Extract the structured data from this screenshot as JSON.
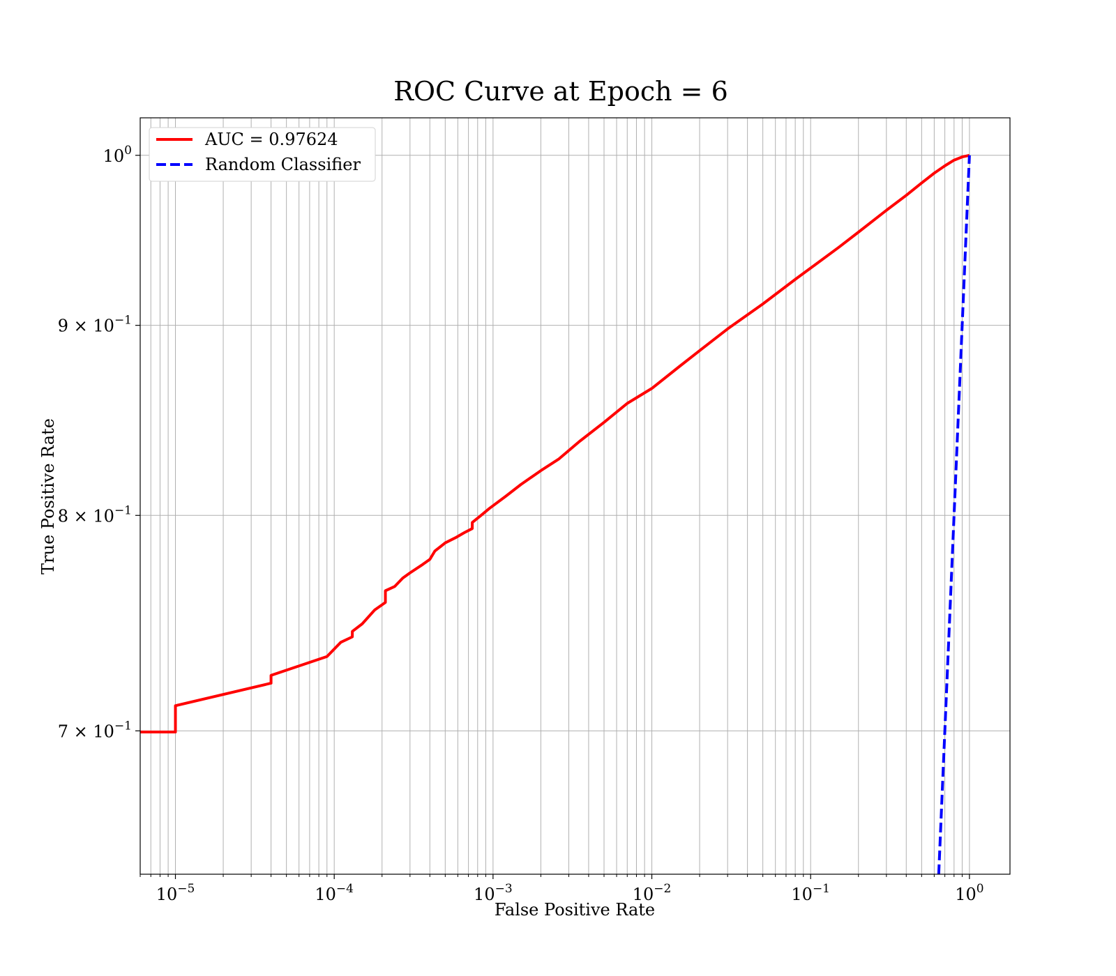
{
  "chart_data": {
    "type": "line",
    "title": "ROC Curve at Epoch = 6",
    "xlabel": "False Positive Rate",
    "ylabel": "True Positive Rate",
    "xscale": "log",
    "yscale": "log",
    "xlim": [
      6e-06,
      1.8
    ],
    "ylim": [
      0.6405,
      1.0235
    ],
    "grid": "both (major and minor)",
    "legend_position": "upper left",
    "x_ticks": [
      {
        "base": "10",
        "exp": "−5"
      },
      {
        "base": "10",
        "exp": "−4"
      },
      {
        "base": "10",
        "exp": "−3"
      },
      {
        "base": "10",
        "exp": "−2"
      },
      {
        "base": "10",
        "exp": "−1"
      },
      {
        "base": "10",
        "exp": "0"
      }
    ],
    "y_ticks": [
      {
        "mant": "7 × ",
        "base": "10",
        "exp": "−1"
      },
      {
        "mant": "8 × ",
        "base": "10",
        "exp": "−1"
      },
      {
        "mant": "9 × ",
        "base": "10",
        "exp": "−1"
      },
      {
        "mant": "",
        "base": "10",
        "exp": "0"
      }
    ],
    "series": [
      {
        "name": "AUC = 0.97624",
        "color": "#ff0000",
        "style": "solid",
        "x": [
          6e-06,
          1e-05,
          1e-05,
          4e-05,
          4e-05,
          9e-05,
          0.00011,
          0.00013,
          0.00013,
          0.00015,
          0.00018,
          0.00021,
          0.00021,
          0.00024,
          0.00027,
          0.0003,
          0.00036,
          0.0004,
          0.00043,
          0.0005,
          0.00058,
          0.00066,
          0.00074,
          0.00074,
          0.00084,
          0.00095,
          0.0012,
          0.0015,
          0.002,
          0.0026,
          0.0035,
          0.005,
          0.007,
          0.01,
          0.015,
          0.02,
          0.03,
          0.05,
          0.08,
          0.1,
          0.15,
          0.2,
          0.3,
          0.4,
          0.5,
          0.6,
          0.7,
          0.8,
          0.9,
          1.0
        ],
        "y": [
          0.6995,
          0.6995,
          0.711,
          0.721,
          0.7245,
          0.733,
          0.7395,
          0.742,
          0.7445,
          0.748,
          0.7545,
          0.758,
          0.7635,
          0.7655,
          0.7695,
          0.772,
          0.776,
          0.7785,
          0.7825,
          0.7865,
          0.789,
          0.7915,
          0.7935,
          0.7965,
          0.8,
          0.8035,
          0.8095,
          0.8155,
          0.8225,
          0.8285,
          0.8375,
          0.8475,
          0.8575,
          0.8655,
          0.8775,
          0.886,
          0.898,
          0.912,
          0.926,
          0.9325,
          0.9445,
          0.9535,
          0.9665,
          0.9755,
          0.983,
          0.989,
          0.9935,
          0.997,
          0.999,
          1.0
        ]
      },
      {
        "name": "Random Classifier",
        "color": "#0000ff",
        "style": "dashed",
        "x": [
          0.6405,
          1.0
        ],
        "y": [
          0.6405,
          1.0
        ]
      }
    ]
  }
}
